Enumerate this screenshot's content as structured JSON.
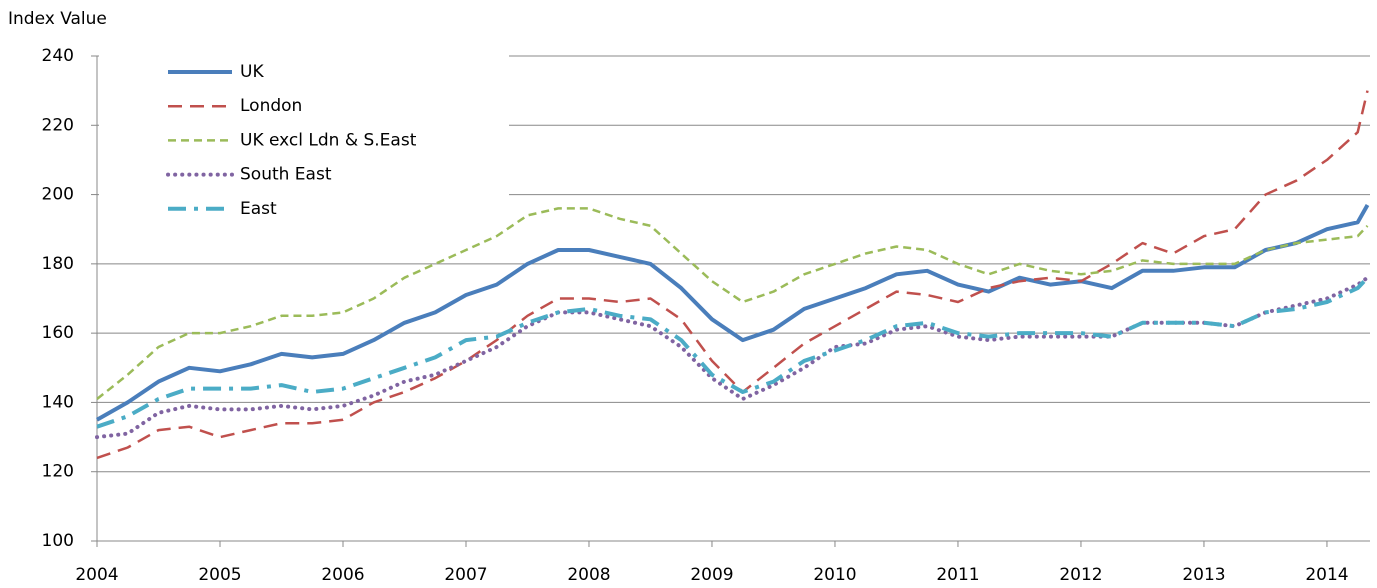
{
  "chart_data": {
    "type": "line",
    "y_label": "Index Value",
    "x": [
      2004,
      2004.25,
      2004.5,
      2004.75,
      2005,
      2005.25,
      2005.5,
      2005.75,
      2006,
      2006.25,
      2006.5,
      2006.75,
      2007,
      2007.25,
      2007.5,
      2007.75,
      2008,
      2008.25,
      2008.5,
      2008.75,
      2009,
      2009.25,
      2009.5,
      2009.75,
      2010,
      2010.25,
      2010.5,
      2010.75,
      2011,
      2011.25,
      2011.5,
      2011.75,
      2012,
      2012.25,
      2012.5,
      2012.75,
      2013,
      2013.25,
      2013.5,
      2013.75,
      2014,
      2014.25,
      2014.33
    ],
    "xlim": [
      2004,
      2014.35
    ],
    "xticks": [
      2004,
      2005,
      2006,
      2007,
      2008,
      2009,
      2010,
      2011,
      2012,
      2013,
      2014
    ],
    "ylim": [
      100,
      240
    ],
    "yticks": [
      100,
      120,
      140,
      160,
      180,
      200,
      220,
      240
    ],
    "grid": true,
    "legend": "upper left",
    "series": [
      {
        "name": "UK",
        "color": "#4a7ebb",
        "line_style": "solid",
        "values": [
          135,
          140,
          146,
          150,
          149,
          151,
          154,
          153,
          154,
          158,
          163,
          166,
          171,
          174,
          180,
          184,
          184,
          182,
          180,
          173,
          164,
          158,
          161,
          167,
          170,
          173,
          177,
          178,
          174,
          172,
          176,
          174,
          175,
          173,
          178,
          178,
          179,
          179,
          184,
          186,
          190,
          192,
          197
        ]
      },
      {
        "name": "London",
        "color": "#c0504d",
        "line_style": "dashed",
        "values": [
          124,
          127,
          132,
          133,
          130,
          132,
          134,
          134,
          135,
          140,
          143,
          147,
          152,
          158,
          165,
          170,
          170,
          169,
          170,
          164,
          152,
          143,
          150,
          157,
          162,
          167,
          172,
          171,
          169,
          173,
          175,
          176,
          175,
          180,
          186,
          183,
          188,
          190,
          200,
          204,
          210,
          218,
          230
        ]
      },
      {
        "name": "UK excl Ldn & S.East",
        "color": "#9bbb59",
        "line_style": "short-dashed",
        "values": [
          141,
          148,
          156,
          160,
          160,
          162,
          165,
          165,
          166,
          170,
          176,
          180,
          184,
          188,
          194,
          196,
          196,
          193,
          191,
          183,
          175,
          169,
          172,
          177,
          180,
          183,
          185,
          184,
          180,
          177,
          180,
          178,
          177,
          178,
          181,
          180,
          180,
          180,
          184,
          186,
          187,
          188,
          191
        ]
      },
      {
        "name": "South East",
        "color": "#8064a2",
        "line_style": "dotted",
        "values": [
          130,
          131,
          137,
          139,
          138,
          138,
          139,
          138,
          139,
          142,
          146,
          148,
          152,
          156,
          162,
          166,
          166,
          164,
          162,
          156,
          147,
          141,
          145,
          150,
          156,
          157,
          161,
          162,
          159,
          158,
          159,
          159,
          159,
          159,
          163,
          163,
          163,
          162,
          166,
          168,
          170,
          174,
          176
        ]
      },
      {
        "name": "East",
        "color": "#4bacc6",
        "line_style": "dashdot",
        "values": [
          133,
          136,
          141,
          144,
          144,
          144,
          145,
          143,
          144,
          147,
          150,
          153,
          158,
          159,
          163,
          166,
          167,
          165,
          164,
          158,
          148,
          143,
          146,
          152,
          155,
          158,
          162,
          163,
          160,
          159,
          160,
          160,
          160,
          159,
          163,
          163,
          163,
          162,
          166,
          167,
          169,
          173,
          176
        ]
      }
    ]
  }
}
